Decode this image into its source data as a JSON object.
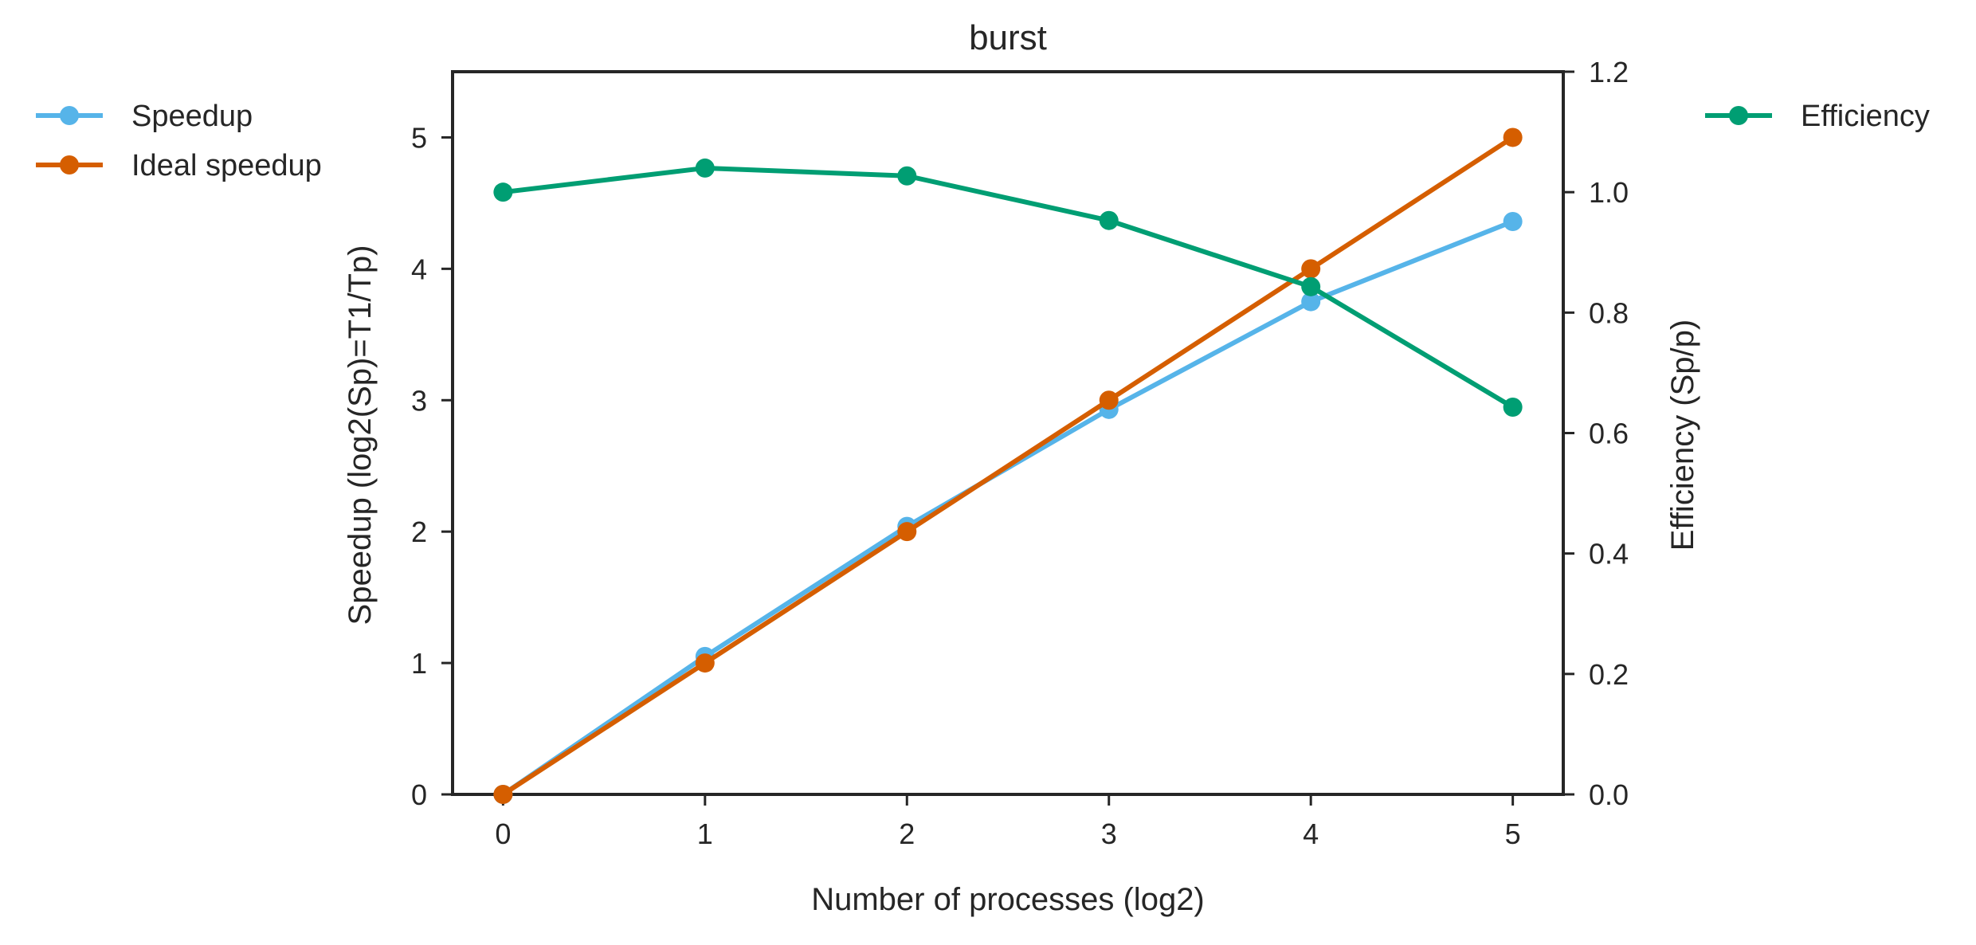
{
  "chart_data": {
    "type": "line",
    "title": "burst",
    "xlabel": "Number of processes (log2)",
    "ylabel_left": "Speedup (log2(Sp)=T1/Tp)",
    "ylabel_right": "Efficiency (Sp/p)",
    "x": [
      0,
      1,
      2,
      3,
      4,
      5
    ],
    "xlim": [
      -0.25,
      5.25
    ],
    "ylim_left": [
      0,
      5.5
    ],
    "ylim_right": [
      0,
      1.2
    ],
    "xticks": [
      "0",
      "1",
      "2",
      "3",
      "4",
      "5"
    ],
    "yticks_left": [
      "0",
      "1",
      "2",
      "3",
      "4",
      "5"
    ],
    "yticks_right": [
      "0.0",
      "0.2",
      "0.4",
      "0.6",
      "0.8",
      "1.0",
      "1.2"
    ],
    "grid": false,
    "series": [
      {
        "name": "Speedup",
        "axis": "left",
        "color": "#56b4e9",
        "values": [
          0,
          1.05,
          2.04,
          2.93,
          3.75,
          4.36
        ]
      },
      {
        "name": "Ideal speedup",
        "axis": "left",
        "color": "#d55e00",
        "values": [
          0,
          1,
          2,
          3,
          4,
          5
        ]
      },
      {
        "name": "Efficiency",
        "axis": "right",
        "color": "#009e73",
        "values": [
          1.0,
          1.04,
          1.027,
          0.953,
          0.843,
          0.643
        ]
      }
    ],
    "legend_left": [
      "Speedup",
      "Ideal speedup"
    ],
    "legend_right": [
      "Efficiency"
    ]
  }
}
